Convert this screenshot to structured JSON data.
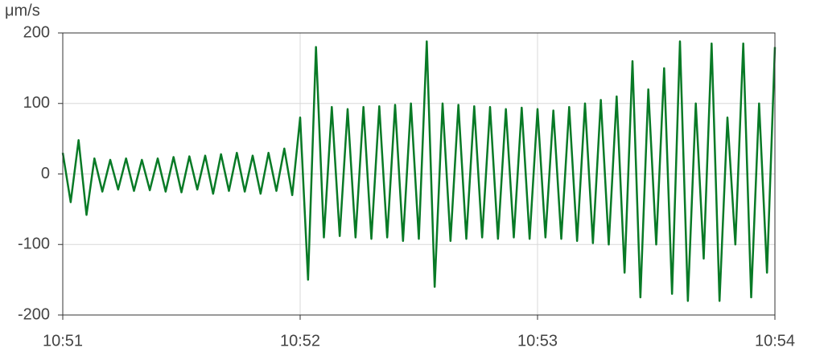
{
  "chart_data": {
    "type": "line",
    "y_unit": "μm/s",
    "x": [
      0,
      2,
      4,
      6,
      8,
      10,
      12,
      14,
      16,
      18,
      20,
      22,
      24,
      26,
      28,
      30,
      32,
      34,
      36,
      38,
      40,
      42,
      44,
      46,
      48,
      50,
      52,
      54,
      56,
      58,
      60,
      62,
      64,
      66,
      68,
      70,
      72,
      74,
      76,
      78,
      80,
      82,
      84,
      86,
      88,
      90,
      92,
      94,
      96,
      98,
      100,
      102,
      104,
      106,
      108,
      110,
      112,
      114,
      116,
      118,
      120,
      122,
      124,
      126,
      128,
      130,
      132,
      134,
      136,
      138,
      140,
      142,
      144,
      146,
      148,
      150,
      152,
      154,
      156,
      158,
      160,
      162,
      164,
      166,
      168,
      170,
      172,
      174,
      176,
      178,
      180
    ],
    "values": [
      30,
      -40,
      48,
      -58,
      22,
      -25,
      20,
      -22,
      22,
      -24,
      20,
      -23,
      22,
      -25,
      24,
      -26,
      25,
      -22,
      26,
      -28,
      28,
      -24,
      30,
      -25,
      26,
      -28,
      30,
      -24,
      36,
      -30,
      80,
      -150,
      180,
      -90,
      95,
      -88,
      92,
      -90,
      95,
      -92,
      96,
      -90,
      98,
      -95,
      100,
      -92,
      188,
      -160,
      100,
      -95,
      98,
      -92,
      96,
      -90,
      95,
      -92,
      92,
      -90,
      94,
      -92,
      92,
      -90,
      90,
      -92,
      95,
      -95,
      100,
      -98,
      105,
      -100,
      110,
      -140,
      160,
      -175,
      120,
      -100,
      150,
      -170,
      188,
      -180,
      100,
      -120,
      185,
      -180,
      80,
      -100,
      185,
      -175,
      100,
      -140,
      180
    ],
    "color": "#087a26",
    "xlim": [
      0,
      180
    ],
    "xticks": [
      {
        "value": 0,
        "label": "10:51"
      },
      {
        "value": 60,
        "label": "10:52"
      },
      {
        "value": 120,
        "label": "10:53"
      },
      {
        "value": 180,
        "label": "10:54"
      }
    ],
    "ylim": [
      -200,
      200
    ],
    "yticks": [
      -200,
      -100,
      0,
      100,
      200
    ],
    "grid": true
  }
}
